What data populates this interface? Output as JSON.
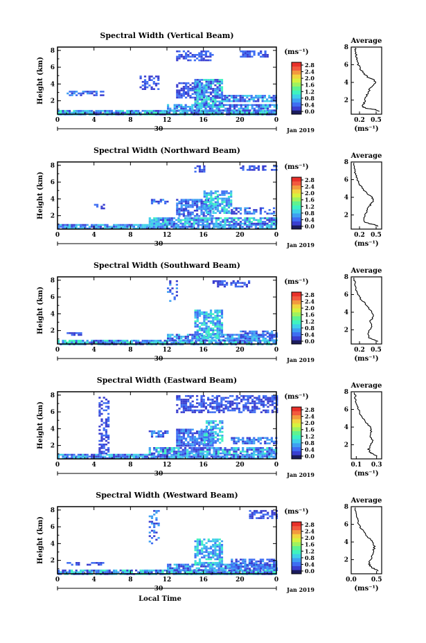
{
  "colors": {
    "colorbar": [
      "#1b1b5c",
      "#3a3fd0",
      "#3f6ef2",
      "#3fa0f2",
      "#3fd0e8",
      "#3ff2c0",
      "#5ff290",
      "#9ff25f",
      "#d6f23f",
      "#f2d43f",
      "#f29a3f",
      "#f25a3f",
      "#e8302a"
    ]
  },
  "chart_data": [
    {
      "type": "heatmap",
      "title": "Spectral Width (Vertical Beam)",
      "ylabel": "Height (km)",
      "y_ticks": [
        "2",
        "4",
        "6",
        "8"
      ],
      "x_ticks": [
        "0",
        "4",
        "8",
        "12",
        "16",
        "20",
        "0"
      ],
      "date_label": "30",
      "date_right": "Jan 2019",
      "colorbar_unit": "(ms⁻¹)",
      "colorbar_ticks": [
        "0.0",
        "0.4",
        "0.8",
        "1.2",
        "1.6",
        "2.0",
        "2.4",
        "2.8"
      ],
      "profile": {
        "title": "Average",
        "y_ticks": [
          "2",
          "4",
          "6",
          "8"
        ],
        "x_ticks": [
          "0.2",
          "0.5"
        ],
        "xlabel": "(ms⁻¹)",
        "xlim": [
          0.05,
          0.6
        ],
        "ylim": [
          0.4,
          8
        ],
        "points": [
          [
            0.55,
            0.7
          ],
          [
            0.5,
            0.9
          ],
          [
            0.4,
            1.0
          ],
          [
            0.3,
            1.1
          ],
          [
            0.25,
            1.3
          ],
          [
            0.28,
            1.6
          ],
          [
            0.3,
            2.0
          ],
          [
            0.32,
            2.4
          ],
          [
            0.35,
            2.8
          ],
          [
            0.38,
            3.2
          ],
          [
            0.42,
            3.6
          ],
          [
            0.5,
            4.0
          ],
          [
            0.45,
            4.3
          ],
          [
            0.35,
            4.6
          ],
          [
            0.28,
            5.0
          ],
          [
            0.22,
            5.5
          ],
          [
            0.18,
            6.0
          ],
          [
            0.15,
            6.5
          ],
          [
            0.14,
            7.0
          ],
          [
            0.13,
            7.5
          ],
          [
            0.12,
            7.9
          ]
        ]
      }
    },
    {
      "type": "heatmap",
      "title": "Spectral Width (Northward Beam)",
      "ylabel": "Height (km)",
      "y_ticks": [
        "2",
        "4",
        "6",
        "8"
      ],
      "x_ticks": [
        "0",
        "4",
        "8",
        "12",
        "16",
        "20",
        "0"
      ],
      "date_label": "30",
      "date_right": "Jan 2019",
      "colorbar_unit": "(ms⁻¹)",
      "colorbar_ticks": [
        "0.0",
        "0.4",
        "0.8",
        "1.2",
        "1.6",
        "2.0",
        "2.4",
        "2.8"
      ],
      "profile": {
        "title": "Average",
        "y_ticks": [
          "2",
          "4",
          "6",
          "8"
        ],
        "x_ticks": [
          "0.2",
          "0.5"
        ],
        "xlabel": "(ms⁻¹)",
        "xlim": [
          0.05,
          0.6
        ],
        "ylim": [
          0.4,
          8
        ],
        "points": [
          [
            0.55,
            0.7
          ],
          [
            0.48,
            0.9
          ],
          [
            0.38,
            1.0
          ],
          [
            0.3,
            1.2
          ],
          [
            0.28,
            1.6
          ],
          [
            0.3,
            2.0
          ],
          [
            0.33,
            2.4
          ],
          [
            0.36,
            2.8
          ],
          [
            0.4,
            3.2
          ],
          [
            0.45,
            3.6
          ],
          [
            0.42,
            4.0
          ],
          [
            0.35,
            4.4
          ],
          [
            0.28,
            4.8
          ],
          [
            0.22,
            5.3
          ],
          [
            0.18,
            5.8
          ],
          [
            0.14,
            6.3
          ],
          [
            0.12,
            6.8
          ],
          [
            0.11,
            7.3
          ],
          [
            0.1,
            7.9
          ]
        ]
      }
    },
    {
      "type": "heatmap",
      "title": "Spectral Width (Southward Beam)",
      "ylabel": "Height (km)",
      "y_ticks": [
        "2",
        "4",
        "6",
        "8"
      ],
      "x_ticks": [
        "0",
        "4",
        "8",
        "12",
        "16",
        "20",
        "0"
      ],
      "date_label": "30",
      "date_right": "Jan 2019",
      "colorbar_unit": "(ms⁻¹)",
      "colorbar_ticks": [
        "0.0",
        "0.4",
        "0.8",
        "1.2",
        "1.6",
        "2.0",
        "2.4",
        "2.8"
      ],
      "profile": {
        "title": "Average",
        "y_ticks": [
          "2",
          "4",
          "6",
          "8"
        ],
        "x_ticks": [
          "0.2",
          "0.5"
        ],
        "xlabel": "(ms⁻¹)",
        "xlim": [
          0.05,
          0.6
        ],
        "ylim": [
          0.4,
          8
        ],
        "points": [
          [
            0.52,
            0.7
          ],
          [
            0.45,
            0.9
          ],
          [
            0.38,
            1.1
          ],
          [
            0.35,
            1.5
          ],
          [
            0.38,
            2.0
          ],
          [
            0.42,
            2.5
          ],
          [
            0.4,
            3.0
          ],
          [
            0.45,
            3.5
          ],
          [
            0.42,
            4.0
          ],
          [
            0.36,
            4.5
          ],
          [
            0.3,
            5.0
          ],
          [
            0.22,
            5.5
          ],
          [
            0.17,
            6.0
          ],
          [
            0.14,
            6.5
          ],
          [
            0.12,
            7.0
          ],
          [
            0.11,
            7.5
          ],
          [
            0.1,
            7.9
          ]
        ]
      }
    },
    {
      "type": "heatmap",
      "title": "Spectral Width (Eastward Beam)",
      "ylabel": "Height (km)",
      "y_ticks": [
        "2",
        "4",
        "6",
        "8"
      ],
      "x_ticks": [
        "0",
        "4",
        "8",
        "12",
        "16",
        "20",
        "0"
      ],
      "date_label": "30",
      "date_right": "Jan 2019",
      "colorbar_unit": "(ms⁻¹)",
      "colorbar_ticks": [
        "0.0",
        "0.4",
        "0.8",
        "1.2",
        "1.6",
        "2.0",
        "2.4",
        "2.8"
      ],
      "profile": {
        "title": "Average",
        "y_ticks": [
          "2",
          "4",
          "6",
          "8"
        ],
        "x_ticks": [
          "0.1",
          "0.3"
        ],
        "xlabel": "(ms⁻¹)",
        "xlim": [
          0.05,
          0.35
        ],
        "ylim": [
          0.4,
          8
        ],
        "points": [
          [
            0.3,
            0.7
          ],
          [
            0.28,
            0.9
          ],
          [
            0.24,
            1.1
          ],
          [
            0.22,
            1.5
          ],
          [
            0.24,
            2.0
          ],
          [
            0.26,
            2.5
          ],
          [
            0.24,
            3.0
          ],
          [
            0.25,
            3.5
          ],
          [
            0.24,
            4.0
          ],
          [
            0.2,
            4.5
          ],
          [
            0.17,
            5.0
          ],
          [
            0.14,
            5.5
          ],
          [
            0.12,
            6.0
          ],
          [
            0.1,
            6.5
          ],
          [
            0.09,
            7.0
          ],
          [
            0.09,
            7.5
          ],
          [
            0.08,
            7.9
          ]
        ]
      }
    },
    {
      "type": "heatmap",
      "title": "Spectral Width (Westward Beam)",
      "ylabel": "Height (km)",
      "xlabel": "Local Time",
      "y_ticks": [
        "2",
        "4",
        "6",
        "8"
      ],
      "x_ticks": [
        "0",
        "4",
        "8",
        "12",
        "16",
        "20",
        "0"
      ],
      "date_label": "30",
      "date_right": "Jan 2019",
      "colorbar_unit": "(ms⁻¹)",
      "colorbar_ticks": [
        "0.0",
        "0.4",
        "0.8",
        "1.2",
        "1.6",
        "2.0",
        "2.4",
        "2.8"
      ],
      "profile": {
        "title": "Average",
        "y_ticks": [
          "2",
          "4",
          "6",
          "8"
        ],
        "x_ticks": [
          "0.0",
          "0.5"
        ],
        "xlabel": "(ms⁻¹)",
        "xlim": [
          0.0,
          0.6
        ],
        "ylim": [
          0.4,
          8
        ],
        "points": [
          [
            0.55,
            0.7
          ],
          [
            0.48,
            0.9
          ],
          [
            0.4,
            1.1
          ],
          [
            0.35,
            1.5
          ],
          [
            0.38,
            2.0
          ],
          [
            0.42,
            2.5
          ],
          [
            0.44,
            3.0
          ],
          [
            0.46,
            3.5
          ],
          [
            0.42,
            4.0
          ],
          [
            0.34,
            4.5
          ],
          [
            0.26,
            5.0
          ],
          [
            0.2,
            5.5
          ],
          [
            0.15,
            6.0
          ],
          [
            0.12,
            6.5
          ],
          [
            0.1,
            7.0
          ],
          [
            0.09,
            7.5
          ],
          [
            0.08,
            7.9
          ]
        ]
      }
    }
  ]
}
